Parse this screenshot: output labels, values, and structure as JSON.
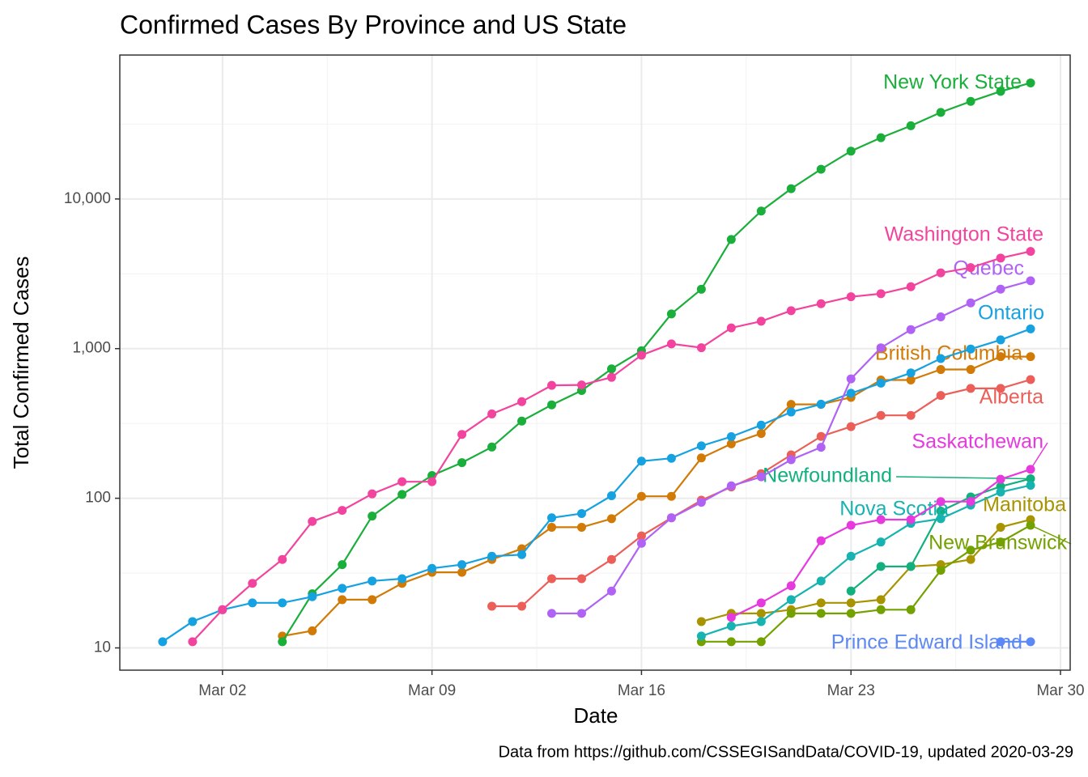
{
  "chart_data": {
    "type": "line",
    "title": "Confirmed Cases By Province and US State",
    "x_label": "Date",
    "y_label": "Total Confirmed Cases",
    "caption": "Data from https://github.com/CSSEGISandData/COVID-19, updated 2020-03-29",
    "y_scale": "log",
    "grid": true,
    "x": [
      "2020-02-29",
      "2020-03-01",
      "2020-03-02",
      "2020-03-03",
      "2020-03-04",
      "2020-03-05",
      "2020-03-06",
      "2020-03-07",
      "2020-03-08",
      "2020-03-09",
      "2020-03-10",
      "2020-03-11",
      "2020-03-12",
      "2020-03-13",
      "2020-03-14",
      "2020-03-15",
      "2020-03-16",
      "2020-03-17",
      "2020-03-18",
      "2020-03-19",
      "2020-03-20",
      "2020-03-21",
      "2020-03-22",
      "2020-03-23",
      "2020-03-24",
      "2020-03-25",
      "2020-03-26",
      "2020-03-27",
      "2020-03-28",
      "2020-03-29"
    ],
    "xlim": [
      "2020-02-27T13:40:00Z",
      "2020-03-30T07:47:00Z"
    ],
    "xticks": [
      {
        "value": "2020-03-02",
        "label": "Mar 02"
      },
      {
        "value": "2020-03-09",
        "label": "Mar 09"
      },
      {
        "value": "2020-03-16",
        "label": "Mar 16"
      },
      {
        "value": "2020-03-23",
        "label": "Mar 23"
      },
      {
        "value": "2020-03-30",
        "label": "Mar 30"
      }
    ],
    "xminor": [
      "2020-03-05T12:00:00Z",
      "2020-03-12T12:00:00Z",
      "2020-03-19T12:00:00Z",
      "2020-03-26T12:00:00Z"
    ],
    "ylim": [
      7.1,
      91600
    ],
    "yticks": [
      10,
      100,
      {
        "value": 1000,
        "label": "1,000"
      },
      {
        "value": 10000,
        "label": "10,000"
      }
    ],
    "yminor": [
      31.62,
      316.2,
      3162,
      31623
    ],
    "series": [
      {
        "name": "Alberta",
        "color": "#eb5f58",
        "values": [
          null,
          null,
          null,
          null,
          null,
          null,
          null,
          null,
          null,
          null,
          null,
          19,
          19,
          29,
          29,
          39,
          56,
          74,
          97,
          119,
          146,
          195,
          259,
          301,
          358,
          358,
          486,
          542,
          542,
          621
        ]
      },
      {
        "name": "British Columbia",
        "color": "#d27a06",
        "values": [
          null,
          null,
          null,
          null,
          12,
          13,
          21,
          21,
          27,
          32,
          32,
          39,
          46,
          64,
          64,
          73,
          103,
          103,
          186,
          231,
          271,
          424,
          424,
          472,
          617,
          617,
          725,
          725,
          884,
          884
        ]
      },
      {
        "name": "Manitoba",
        "color": "#a89400",
        "values": [
          null,
          null,
          null,
          null,
          null,
          null,
          null,
          null,
          null,
          null,
          null,
          null,
          null,
          null,
          null,
          null,
          null,
          null,
          15,
          17,
          17,
          18,
          20,
          20,
          21,
          35,
          36,
          39,
          64,
          72
        ]
      },
      {
        "name": "New Brunswick",
        "color": "#73a200",
        "values": [
          null,
          null,
          null,
          null,
          null,
          null,
          null,
          null,
          null,
          null,
          null,
          null,
          null,
          null,
          null,
          null,
          null,
          null,
          11,
          11,
          11,
          17,
          17,
          17,
          18,
          18,
          33,
          45,
          51,
          66
        ]
      },
      {
        "name": "New York State",
        "color": "#1aae3a",
        "values": [
          null,
          null,
          null,
          null,
          11,
          23,
          36,
          76,
          106,
          142,
          173,
          220,
          328,
          421,
          525,
          732,
          967,
          1706,
          2495,
          5365,
          8310,
          11710,
          15793,
          20884,
          25681,
          30841,
          37877,
          44876,
          52410,
          59648
        ]
      },
      {
        "name": "Newfoundland",
        "color": "#13b07f",
        "values": [
          null,
          null,
          null,
          null,
          null,
          null,
          null,
          null,
          null,
          null,
          null,
          null,
          null,
          null,
          null,
          null,
          null,
          null,
          null,
          null,
          null,
          null,
          null,
          24,
          35,
          35,
          82,
          102,
          120,
          135
        ]
      },
      {
        "name": "Nova Scotia",
        "color": "#17b3b0",
        "values": [
          null,
          null,
          null,
          null,
          null,
          null,
          null,
          null,
          null,
          null,
          null,
          null,
          null,
          null,
          null,
          null,
          null,
          null,
          12,
          14,
          15,
          21,
          28,
          41,
          51,
          68,
          73,
          90,
          110,
          122
        ]
      },
      {
        "name": "Ontario",
        "color": "#16a1e0",
        "values": [
          11,
          15,
          18,
          20,
          20,
          22,
          25,
          28,
          29,
          34,
          36,
          41,
          42,
          74,
          79,
          104,
          177,
          185,
          224,
          258,
          308,
          377,
          425,
          503,
          588,
          688,
          858,
          993,
          1144,
          1355
        ]
      },
      {
        "name": "Prince Edward Island",
        "color": "#5b88f5",
        "values": [
          null,
          null,
          null,
          null,
          null,
          null,
          null,
          null,
          null,
          null,
          null,
          null,
          null,
          null,
          null,
          null,
          null,
          null,
          null,
          null,
          null,
          null,
          null,
          null,
          null,
          null,
          null,
          null,
          11,
          11
        ]
      },
      {
        "name": "Quebec",
        "color": "#b062f5",
        "values": [
          null,
          null,
          null,
          null,
          null,
          null,
          null,
          null,
          null,
          null,
          null,
          null,
          null,
          17,
          17,
          24,
          50,
          74,
          94,
          121,
          139,
          181,
          219,
          628,
          1013,
          1339,
          1629,
          2021,
          2498,
          2840
        ]
      },
      {
        "name": "Saskatchewan",
        "color": "#e639de",
        "values": [
          null,
          null,
          null,
          null,
          null,
          null,
          null,
          null,
          null,
          null,
          null,
          null,
          null,
          null,
          null,
          null,
          null,
          null,
          null,
          16,
          20,
          26,
          52,
          66,
          72,
          72,
          95,
          95,
          134,
          156
        ]
      },
      {
        "name": "Washington State",
        "color": "#f2449e",
        "values": [
          null,
          11,
          18,
          27,
          39,
          70,
          83,
          107,
          129,
          129,
          267,
          366,
          442,
          568,
          572,
          643,
          904,
          1076,
          1014,
          1376,
          1524,
          1793,
          1996,
          2221,
          2328,
          2591,
          3207,
          3477,
          4030,
          4465
        ]
      }
    ]
  }
}
